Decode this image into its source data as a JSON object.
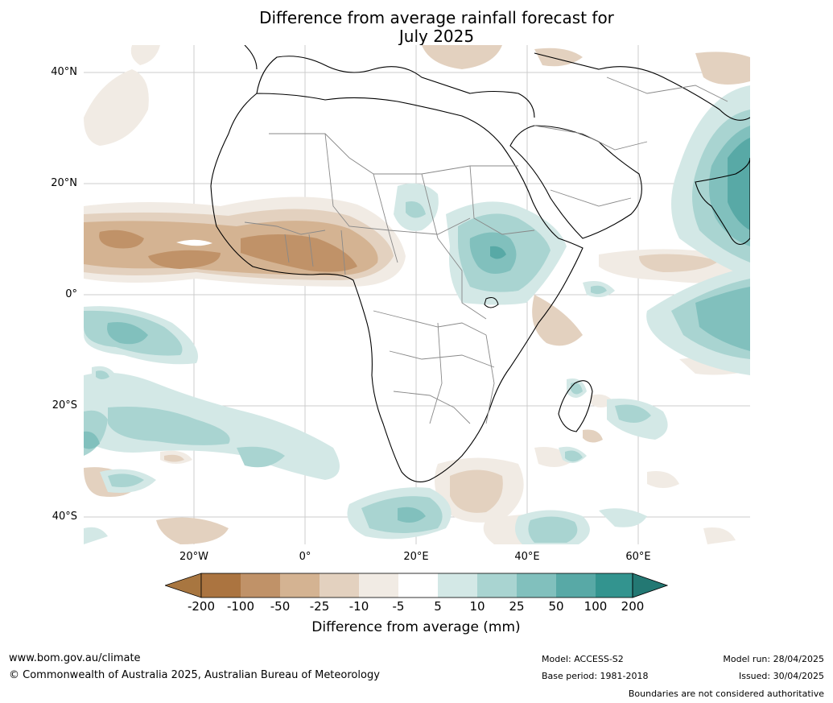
{
  "title": {
    "line1": "Difference from average rainfall forecast for",
    "line2": "July 2025"
  },
  "map": {
    "lat_labels": [
      "40°N",
      "20°N",
      "0°",
      "20°S",
      "40°S"
    ],
    "lon_labels": [
      "20°W",
      "0°",
      "20°E",
      "40°E",
      "60°E"
    ],
    "region": "Africa and surrounds",
    "colors": {
      "dry_strong": "#a87640",
      "dry_1": "#c09268",
      "dry_2": "#d4b392",
      "dry_3": "#e3d1bf",
      "dry_4": "#f1ebe4",
      "neutral": "#ffffff",
      "wet_1": "#d3e8e6",
      "wet_2": "#a9d4d1",
      "wet_3": "#81c0bd",
      "wet_4": "#58a9a6",
      "wet_5": "#33948f",
      "wet_strong": "#237873",
      "land_outline": "#000000",
      "border": "#888888",
      "grid": "#cccccc"
    }
  },
  "colorbar": {
    "labels": [
      "-200",
      "-100",
      "-50",
      "-25",
      "-10",
      "-5",
      "5",
      "10",
      "25",
      "50",
      "100",
      "200"
    ],
    "title": "Difference from average (mm)"
  },
  "footer": {
    "website": "www.bom.gov.au/climate",
    "copyright": "© Commonwealth of Australia 2025, Australian Bureau of Meteorology",
    "model": "Model: ACCESS-S2",
    "base_period": "Base period: 1981-2018",
    "model_run": "Model run: 28/04/2025",
    "issued": "Issued: 30/04/2025",
    "disclaimer": "Boundaries are not considered authoritative"
  }
}
